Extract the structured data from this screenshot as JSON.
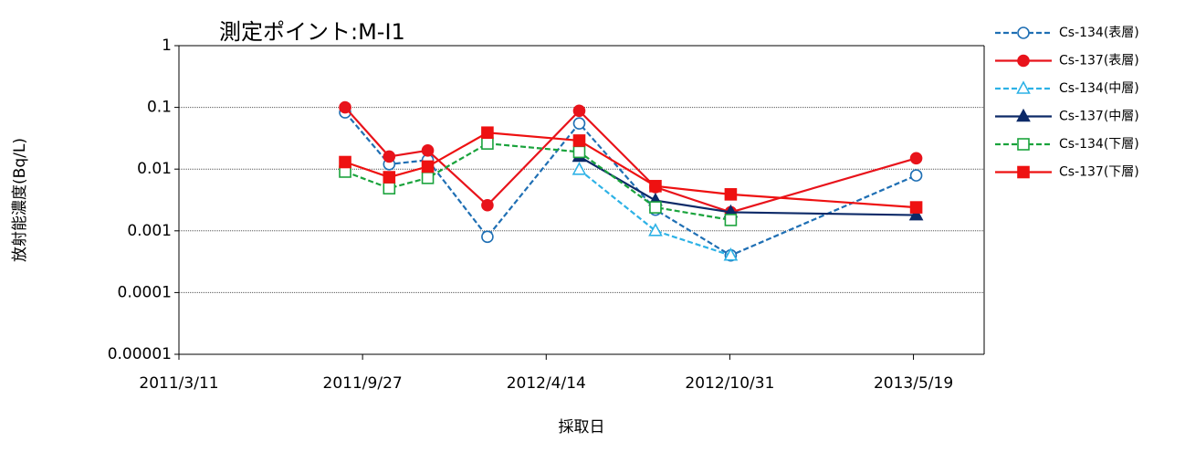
{
  "chart_data": {
    "type": "line",
    "title": "測定ポイント:M-I1",
    "x_label": "採取日",
    "y_label": "放射能濃度(Bq/L)",
    "y_log": true,
    "grid": true,
    "legend_position": "right",
    "x": [
      "2011/9/8",
      "2011/10/26",
      "2011/12/7",
      "2012/2/10",
      "2012/5/20",
      "2012/8/11",
      "2012/11/1",
      "2013/5/22"
    ],
    "xlim": [
      "2011/3/11",
      "2013/8/4"
    ],
    "xticks": [
      "2011/3/11",
      "2011/9/27",
      "2012/4/14",
      "2012/10/31",
      "2013/5/19"
    ],
    "ylim": [
      1e-05,
      1
    ],
    "yticks": [
      {
        "value": 1e-05,
        "label": "0.00001"
      },
      0.0001,
      0.001,
      0.01,
      0.1,
      1
    ],
    "series": [
      {
        "name": "Cs-134(表層)",
        "color": "#1f6fb4",
        "dashed": true,
        "marker": "circle",
        "filled": false,
        "values": [
          0.083,
          0.012,
          0.014,
          0.0008,
          0.055,
          0.0022,
          0.0004,
          0.0079
        ]
      },
      {
        "name": "Cs-137(表層)",
        "color": "#e8131b",
        "dashed": false,
        "marker": "circle",
        "filled": true,
        "values": [
          0.1,
          0.016,
          0.02,
          0.0026,
          0.088,
          0.0051,
          0.002,
          0.015
        ]
      },
      {
        "name": "Cs-134(中層)",
        "color": "#2db2e6",
        "dashed": true,
        "marker": "triangle",
        "filled": false,
        "values": [
          null,
          null,
          null,
          null,
          0.0098,
          0.001,
          0.0004,
          null
        ]
      },
      {
        "name": "Cs-137(中層)",
        "color": "#0d2a68",
        "dashed": false,
        "marker": "triangle",
        "filled": true,
        "values": [
          null,
          null,
          null,
          null,
          0.016,
          0.0031,
          0.002,
          0.0018
        ]
      },
      {
        "name": "Cs-134(下層)",
        "color": "#1aa33c",
        "dashed": true,
        "marker": "square",
        "filled": false,
        "values": [
          0.0091,
          0.0049,
          0.0072,
          0.026,
          0.019,
          0.0024,
          0.0015,
          null
        ]
      },
      {
        "name": "Cs-137(下層)",
        "color": "#ee1111",
        "dashed": false,
        "marker": "square",
        "filled": true,
        "values": [
          0.013,
          0.0074,
          0.011,
          0.039,
          0.029,
          0.0053,
          0.0039,
          0.0024
        ]
      }
    ]
  }
}
